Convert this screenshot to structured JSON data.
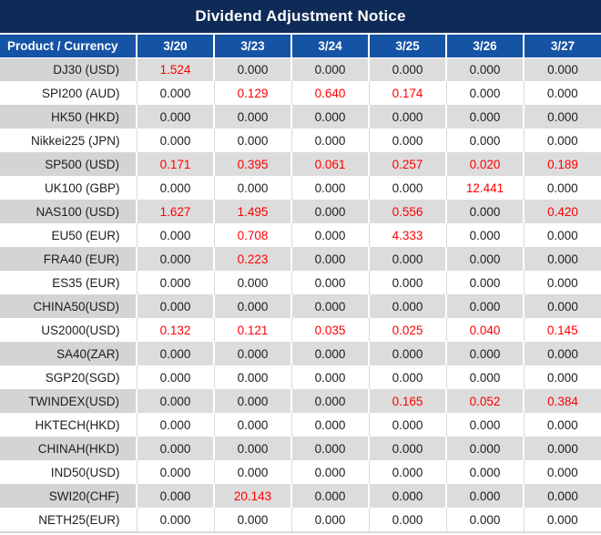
{
  "title": "Dividend Adjustment Notice",
  "table": {
    "product_header": "Product / Currency",
    "date_columns": [
      "3/20",
      "3/23",
      "3/24",
      "3/25",
      "3/26",
      "3/27"
    ],
    "rows": [
      {
        "product": "DJ30 (USD)",
        "values": [
          "1.524",
          "0.000",
          "0.000",
          "0.000",
          "0.000",
          "0.000"
        ],
        "red_indices": [
          0
        ]
      },
      {
        "product": "SPI200 (AUD)",
        "values": [
          "0.000",
          "0.129",
          "0.640",
          "0.174",
          "0.000",
          "0.000"
        ],
        "red_indices": [
          1,
          2,
          3
        ]
      },
      {
        "product": "HK50 (HKD)",
        "values": [
          "0.000",
          "0.000",
          "0.000",
          "0.000",
          "0.000",
          "0.000"
        ],
        "red_indices": []
      },
      {
        "product": "Nikkei225 (JPN)",
        "values": [
          "0.000",
          "0.000",
          "0.000",
          "0.000",
          "0.000",
          "0.000"
        ],
        "red_indices": []
      },
      {
        "product": "SP500 (USD)",
        "values": [
          "0.171",
          "0.395",
          "0.061",
          "0.257",
          "0.020",
          "0.189"
        ],
        "red_indices": [
          0,
          1,
          2,
          3,
          4,
          5
        ]
      },
      {
        "product": "UK100 (GBP)",
        "values": [
          "0.000",
          "0.000",
          "0.000",
          "0.000",
          "12.441",
          "0.000"
        ],
        "red_indices": [
          4
        ]
      },
      {
        "product": "NAS100 (USD)",
        "values": [
          "1.627",
          "1.495",
          "0.000",
          "0.556",
          "0.000",
          "0.420"
        ],
        "red_indices": [
          0,
          1,
          3,
          5
        ]
      },
      {
        "product": "EU50 (EUR)",
        "values": [
          "0.000",
          "0.708",
          "0.000",
          "4.333",
          "0.000",
          "0.000"
        ],
        "red_indices": [
          1,
          3
        ]
      },
      {
        "product": "FRA40 (EUR)",
        "values": [
          "0.000",
          "0.223",
          "0.000",
          "0.000",
          "0.000",
          "0.000"
        ],
        "red_indices": [
          1
        ]
      },
      {
        "product": "ES35 (EUR)",
        "values": [
          "0.000",
          "0.000",
          "0.000",
          "0.000",
          "0.000",
          "0.000"
        ],
        "red_indices": []
      },
      {
        "product": "CHINA50(USD)",
        "values": [
          "0.000",
          "0.000",
          "0.000",
          "0.000",
          "0.000",
          "0.000"
        ],
        "red_indices": []
      },
      {
        "product": "US2000(USD)",
        "values": [
          "0.132",
          "0.121",
          "0.035",
          "0.025",
          "0.040",
          "0.145"
        ],
        "red_indices": [
          0,
          1,
          2,
          3,
          4,
          5
        ]
      },
      {
        "product": "SA40(ZAR)",
        "values": [
          "0.000",
          "0.000",
          "0.000",
          "0.000",
          "0.000",
          "0.000"
        ],
        "red_indices": []
      },
      {
        "product": "SGP20(SGD)",
        "values": [
          "0.000",
          "0.000",
          "0.000",
          "0.000",
          "0.000",
          "0.000"
        ],
        "red_indices": []
      },
      {
        "product": "TWINDEX(USD)",
        "values": [
          "0.000",
          "0.000",
          "0.000",
          "0.165",
          "0.052",
          "0.384"
        ],
        "red_indices": [
          3,
          4,
          5
        ]
      },
      {
        "product": "HKTECH(HKD)",
        "values": [
          "0.000",
          "0.000",
          "0.000",
          "0.000",
          "0.000",
          "0.000"
        ],
        "red_indices": []
      },
      {
        "product": "CHINAH(HKD)",
        "values": [
          "0.000",
          "0.000",
          "0.000",
          "0.000",
          "0.000",
          "0.000"
        ],
        "red_indices": []
      },
      {
        "product": "IND50(USD)",
        "values": [
          "0.000",
          "0.000",
          "0.000",
          "0.000",
          "0.000",
          "0.000"
        ],
        "red_indices": []
      },
      {
        "product": "SWI20(CHF)",
        "values": [
          "0.000",
          "20.143",
          "0.000",
          "0.000",
          "0.000",
          "0.000"
        ],
        "red_indices": [
          1
        ]
      },
      {
        "product": "NETH25(EUR)",
        "values": [
          "0.000",
          "0.000",
          "0.000",
          "0.000",
          "0.000",
          "0.000"
        ],
        "red_indices": []
      }
    ]
  },
  "colors": {
    "title_bg": "#0e2a57",
    "header_bg": "#1553a5",
    "row_gray": "#dcdcdc",
    "label_gray": "#d4d4d6",
    "separator_gray": "#d9d9d9",
    "text_dark": "#1d1d1f",
    "value_red": "#fe0000",
    "text_white": "#ffffff"
  }
}
